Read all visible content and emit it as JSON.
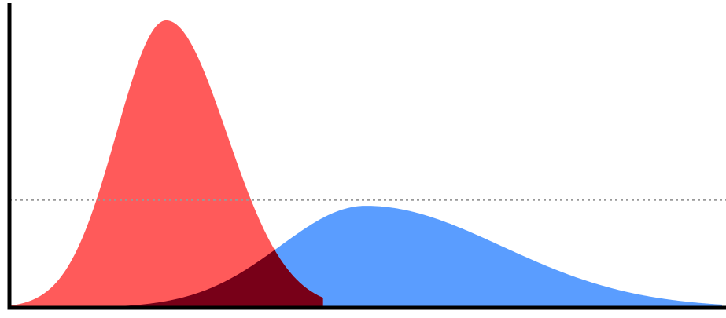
{
  "chart_data": {
    "type": "area",
    "title": "",
    "xlabel": "",
    "ylabel": "",
    "xlim": [
      0,
      100
    ],
    "ylim": [
      0,
      100
    ],
    "grid": false,
    "legend": "none",
    "reference_line": {
      "y": 37.5,
      "style": "dotted",
      "color": "#999999"
    },
    "series": [
      {
        "color": "#ff5a5a",
        "peak_x": 22,
        "peak_y": 100,
        "spread_left": 7,
        "spread_right": 8.5,
        "start_x": 0,
        "end_x": 44
      },
      {
        "color": "#5a9dff",
        "peak_x": 50,
        "peak_y": 35.5,
        "spread_left": 12,
        "spread_right": 19,
        "start_x": 0,
        "end_x": 100
      }
    ],
    "overlap_color": "#780018"
  }
}
